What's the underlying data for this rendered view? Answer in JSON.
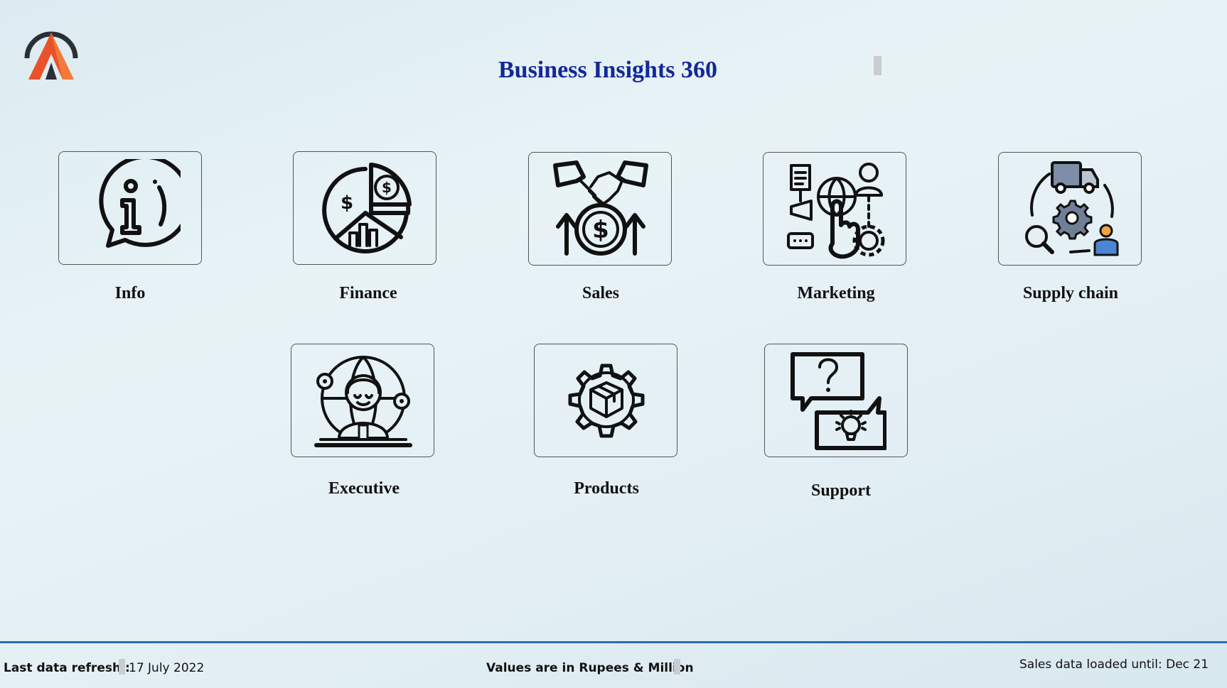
{
  "header": {
    "title": "Business Insights 360",
    "logo_colors": {
      "ring": "#2a2f36",
      "accent": "#e8512a",
      "accent_light": "#f47a3a"
    }
  },
  "menu": {
    "items": [
      {
        "label": "Info",
        "icon": "info-icon"
      },
      {
        "label": "Finance",
        "icon": "finance-icon"
      },
      {
        "label": "Sales",
        "icon": "sales-icon"
      },
      {
        "label": "Marketing",
        "icon": "marketing-icon"
      },
      {
        "label": "Supply chain",
        "icon": "supply-chain-icon"
      },
      {
        "label": "Executive",
        "icon": "executive-icon"
      },
      {
        "label": "Products",
        "icon": "products-icon"
      },
      {
        "label": "Support",
        "icon": "support-icon"
      }
    ]
  },
  "footer": {
    "refresh_label": "Last data refresh :",
    "refresh_date": "17 July 2022",
    "units_note": "Values are in Rupees & Million",
    "loaded_until": "Sales data loaded until: Dec 21",
    "accent_color": "#2b6db5"
  }
}
